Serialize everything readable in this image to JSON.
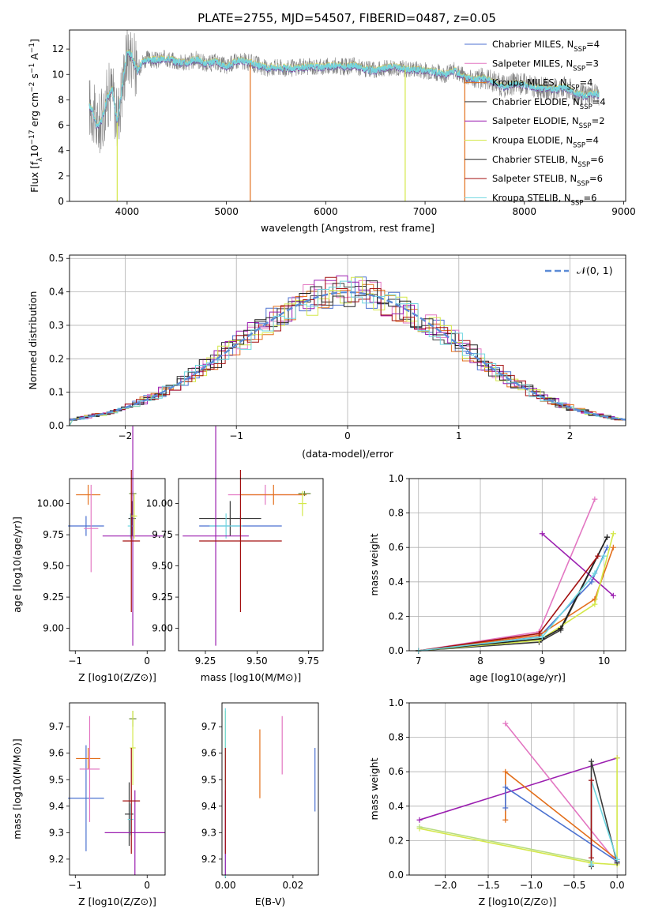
{
  "figure_title": "PLATE=2755, MJD=54507, FIBERID=0487, z=0.05",
  "series_names": [
    "Chabrier MILES, N$_{SSP}$=4",
    "Salpeter MILES, N$_{SSP}$=3",
    "Kroupa MILES, N$_{SSP}$=4",
    "Chabrier ELODIE, N$_{SSP}$=4",
    "Salpeter ELODIE, N$_{SSP}$=2",
    "Kroupa ELODIE, N$_{SSP}$=4",
    "Chabrier STELIB, N$_{SSP}$=6",
    "Salpeter STELIB, N$_{SSP}$=6",
    "Kroupa STELIB, N$_{SSP}$=6"
  ],
  "chart_data": [
    {
      "type": "line",
      "title": "PLATE=2755, MJD=54507, FIBERID=0487, z=0.05",
      "xlabel": "wavelength [Angstrom, rest frame]",
      "ylabel": "Flux [f_λ 10^-17 erg cm^-2 s^-1 A^-1]",
      "xlim": [
        3420,
        9020
      ],
      "ylim": [
        0,
        13.5
      ],
      "xticks": [
        4000,
        5000,
        6000,
        7000,
        8000,
        9000
      ],
      "yticks": [
        0,
        2,
        4,
        6,
        8,
        10,
        12
      ],
      "legend": {
        "position": "upper-right",
        "entries": [
          {
            "prefix": "Chabrier MILES, N",
            "sub": "SSP",
            "suffix": "=4",
            "color": "#4c72d0"
          },
          {
            "prefix": "Salpeter MILES, N",
            "sub": "SSP",
            "suffix": "=3",
            "color": "#e377c2"
          },
          {
            "prefix": "Kroupa MILES, N",
            "sub": "SSP",
            "suffix": "=4",
            "color": "#e3701d"
          },
          {
            "prefix": "Chabrier ELODIE, N",
            "sub": "SSP",
            "suffix": "=4",
            "color": "#3a3a3a"
          },
          {
            "prefix": "Salpeter ELODIE, N",
            "sub": "SSP",
            "suffix": "=2",
            "color": "#9b1fb0"
          },
          {
            "prefix": "Kroupa ELODIE, N",
            "sub": "SSP",
            "suffix": "=4",
            "color": "#d4e84a"
          },
          {
            "prefix": "Chabrier STELIB, N",
            "sub": "SSP",
            "suffix": "=6",
            "color": "#222222"
          },
          {
            "prefix": "Salpeter STELIB, N",
            "sub": "SSP",
            "suffix": "=6",
            "color": "#a31010"
          },
          {
            "prefix": "Kroupa STELIB, N",
            "sub": "SSP",
            "suffix": "=6",
            "color": "#6fd6e0"
          }
        ]
      },
      "data_color": "#808080",
      "model_color": "#74d4dd",
      "spectrum_x": [
        3620,
        3650,
        3700,
        3750,
        3800,
        3850,
        3900,
        3950,
        4000,
        4050,
        4100,
        4150,
        4200,
        4300,
        4400,
        4500,
        4600,
        4700,
        4800,
        4900,
        5000,
        5100,
        5200,
        5300,
        5400,
        5500,
        5600,
        5700,
        5800,
        5900,
        6000,
        6100,
        6200,
        6300,
        6400,
        6500,
        6600,
        6700,
        6800,
        6900,
        7000,
        7100,
        7200,
        7300,
        7400,
        7500,
        7600,
        7700,
        7800,
        7900,
        8000,
        8100,
        8200,
        8300,
        8400,
        8500,
        8600,
        8700,
        8750
      ],
      "spectrum_y": [
        7.5,
        7.2,
        5.8,
        6.5,
        8.2,
        8.8,
        6.2,
        9.0,
        11.8,
        11.5,
        10.2,
        11.0,
        11.2,
        11.1,
        11.3,
        11.0,
        10.9,
        11.2,
        10.8,
        11.0,
        10.6,
        11.1,
        11.0,
        10.8,
        10.5,
        10.6,
        10.5,
        10.5,
        10.6,
        10.6,
        10.6,
        10.7,
        10.6,
        10.7,
        10.4,
        10.3,
        10.5,
        10.6,
        10.4,
        10.4,
        10.3,
        10.2,
        10.0,
        10.3,
        9.8,
        9.6,
        9.7,
        9.4,
        9.0,
        9.3,
        9.2,
        9.0,
        8.9,
        8.8,
        9.0,
        8.6,
        8.3,
        8.5,
        8.4
      ],
      "dips_x": [
        3900,
        5240,
        6800,
        7400
      ],
      "dip_colors": [
        "#d4e84a",
        "#e3701d",
        "#d4e84a",
        "#e3701d"
      ]
    },
    {
      "type": "histogram",
      "xlabel": "(data-model)/error",
      "ylabel": "Normed distribution",
      "xlim": [
        -2.5,
        2.5
      ],
      "ylim": [
        0,
        0.51
      ],
      "xticks": [
        -2,
        -1,
        0,
        1,
        2
      ],
      "yticks": [
        0.0,
        0.1,
        0.2,
        0.3,
        0.4,
        0.5
      ],
      "grid": true,
      "legend": {
        "position": "upper-right",
        "label": "𝒩(0, 1)",
        "color": "#5b8bd6"
      },
      "bin_width": 0.1,
      "reference_curve": "normal(0,1)"
    },
    {
      "type": "scatter-errorbar",
      "xlabel": "Z [log10(Z/Z⊙)]",
      "ylabel": "age [log10(age/yr)]",
      "xlim": [
        -1.08,
        0.25
      ],
      "ylim": [
        8.82,
        10.2
      ],
      "xticks": [
        -1,
        0
      ],
      "yticks": [
        9.0,
        9.25,
        9.5,
        9.75,
        10.0
      ],
      "points": [
        {
          "x": -0.85,
          "y": 9.82,
          "xerr": 0.25,
          "yerr": 0.08,
          "color": "#4c72d0"
        },
        {
          "x": -0.82,
          "y": 10.07,
          "xerr": 0.17,
          "yerr": 0.08,
          "color": "#e3701d"
        },
        {
          "x": -0.78,
          "y": 9.8,
          "xerr": 0.1,
          "yerr": 0.35,
          "color": "#e377c2"
        },
        {
          "x": -0.2,
          "y": 10.08,
          "xerr": 0.05,
          "yerr": 0.02,
          "color": "#6a8a3a"
        },
        {
          "x": -0.21,
          "y": 9.88,
          "xerr": 0.05,
          "yerr": 0.14,
          "color": "#3a3a3a"
        },
        {
          "x": -0.23,
          "y": 9.82,
          "xerr": 0.04,
          "yerr": 0.1,
          "color": "#6fd6e0"
        },
        {
          "x": -0.2,
          "y": 9.74,
          "xerr": 0.42,
          "yerr": 0.88,
          "color": "#9b1fb0"
        },
        {
          "x": -0.22,
          "y": 9.7,
          "xerr": 0.12,
          "yerr": 0.57,
          "color": "#a31010"
        },
        {
          "x": -0.18,
          "y": 9.9,
          "xerr": 0.04,
          "yerr": 0.18,
          "color": "#d4e84a"
        }
      ]
    },
    {
      "type": "scatter-errorbar",
      "xlabel": "mass [log10(M/M⊙)]",
      "ylabel": "",
      "xlim": [
        9.12,
        9.82
      ],
      "ylim": [
        8.82,
        10.2
      ],
      "xticks": [
        9.25,
        9.5,
        9.75
      ],
      "yticks": [
        9.0,
        9.25,
        9.5,
        9.75,
        10.0
      ],
      "points": [
        {
          "x": 9.42,
          "y": 9.82,
          "xerr": 0.2,
          "yerr": 0.08,
          "color": "#4c72d0"
        },
        {
          "x": 9.54,
          "y": 10.07,
          "xerr": 0.18,
          "yerr": 0.08,
          "color": "#e377c2"
        },
        {
          "x": 9.58,
          "y": 10.07,
          "xerr": 0.16,
          "yerr": 0.08,
          "color": "#e3701d"
        },
        {
          "x": 9.37,
          "y": 9.88,
          "xerr": 0.15,
          "yerr": 0.14,
          "color": "#3a3a3a"
        },
        {
          "x": 9.35,
          "y": 9.82,
          "xerr": 0.08,
          "yerr": 0.1,
          "color": "#6fd6e0"
        },
        {
          "x": 9.3,
          "y": 9.74,
          "xerr": 0.16,
          "yerr": 0.88,
          "color": "#9b1fb0"
        },
        {
          "x": 9.42,
          "y": 9.7,
          "xerr": 0.2,
          "yerr": 0.57,
          "color": "#a31010"
        },
        {
          "x": 9.73,
          "y": 10.08,
          "xerr": 0.03,
          "yerr": 0.02,
          "color": "#6a8a3a"
        },
        {
          "x": 9.72,
          "y": 10.0,
          "xerr": 0.02,
          "yerr": 0.1,
          "color": "#d4e84a"
        }
      ]
    },
    {
      "type": "line",
      "xlabel": "age [log10(age/yr)]",
      "ylabel": "mass weight",
      "xlim": [
        6.85,
        10.35
      ],
      "ylim": [
        0,
        1.0
      ],
      "xticks": [
        7,
        8,
        9,
        10
      ],
      "yticks": [
        0.0,
        0.2,
        0.4,
        0.6,
        0.8,
        1.0
      ],
      "grid": true,
      "series": [
        {
          "color": "#4c72d0",
          "x": [
            7.0,
            8.95,
            9.8,
            10.05
          ],
          "y": [
            0.0,
            0.08,
            0.4,
            0.6
          ]
        },
        {
          "color": "#e377c2",
          "x": [
            7.0,
            8.95,
            9.85
          ],
          "y": [
            0.0,
            0.11,
            0.88
          ]
        },
        {
          "color": "#e3701d",
          "x": [
            7.0,
            8.95,
            9.85,
            10.15
          ],
          "y": [
            0.0,
            0.09,
            0.3,
            0.6
          ]
        },
        {
          "color": "#3a3a3a",
          "x": [
            7.0,
            8.95,
            9.3,
            10.05
          ],
          "y": [
            0.0,
            0.05,
            0.12,
            0.66
          ]
        },
        {
          "color": "#9b1fb0",
          "x": [
            9.0,
            10.15
          ],
          "y": [
            0.68,
            0.32
          ]
        },
        {
          "color": "#d4e84a",
          "x": [
            7.0,
            8.95,
            9.85,
            10.15
          ],
          "y": [
            0.0,
            0.06,
            0.27,
            0.68
          ]
        },
        {
          "color": "#222222",
          "x": [
            7.0,
            9.0,
            9.3,
            10.05
          ],
          "y": [
            0.0,
            0.07,
            0.13,
            0.66
          ]
        },
        {
          "color": "#a31010",
          "x": [
            7.0,
            8.95,
            9.9
          ],
          "y": [
            0.0,
            0.1,
            0.55
          ]
        },
        {
          "color": "#6fd6e0",
          "x": [
            7.0,
            9.0,
            9.85,
            10.0
          ],
          "y": [
            0.0,
            0.08,
            0.45,
            0.55
          ]
        }
      ]
    },
    {
      "type": "scatter-errorbar",
      "xlabel": "Z [log10(Z/Z⊙)]",
      "ylabel": "mass [log10(M/M⊙)]",
      "xlim": [
        -1.08,
        0.25
      ],
      "ylim": [
        9.14,
        9.79
      ],
      "xticks": [
        -1,
        0
      ],
      "yticks": [
        9.2,
        9.3,
        9.4,
        9.5,
        9.6,
        9.7
      ],
      "points": [
        {
          "x": -0.85,
          "y": 9.43,
          "xerr": 0.25,
          "yerr": 0.2,
          "color": "#4c72d0"
        },
        {
          "x": -0.82,
          "y": 9.58,
          "xerr": 0.17,
          "yerr": 0.04,
          "color": "#e3701d"
        },
        {
          "x": -0.8,
          "y": 9.54,
          "xerr": 0.14,
          "yerr": 0.2,
          "color": "#e377c2"
        },
        {
          "x": -0.2,
          "y": 9.73,
          "xerr": 0.05,
          "yerr": 0.03,
          "color": "#6a8a3a"
        },
        {
          "x": -0.2,
          "y": 9.62,
          "xerr": 0.04,
          "yerr": 0.14,
          "color": "#d4e84a"
        },
        {
          "x": -0.25,
          "y": 9.37,
          "xerr": 0.06,
          "yerr": 0.12,
          "color": "#3a3a3a"
        },
        {
          "x": -0.23,
          "y": 9.35,
          "xerr": 0.04,
          "yerr": 0.06,
          "color": "#6fd6e0"
        },
        {
          "x": -0.17,
          "y": 9.3,
          "xerr": 0.42,
          "yerr": 0.16,
          "color": "#9b1fb0"
        },
        {
          "x": -0.22,
          "y": 9.42,
          "xerr": 0.12,
          "yerr": 0.2,
          "color": "#a31010"
        }
      ]
    },
    {
      "type": "scatter-errorbar",
      "xlabel": "E(B-V)",
      "ylabel": "",
      "xlim": [
        -0.001,
        0.0275
      ],
      "ylim": [
        9.14,
        9.79
      ],
      "xticks": [
        0.0,
        0.02
      ],
      "yticks": [
        9.2,
        9.3,
        9.4,
        9.5,
        9.6,
        9.7
      ],
      "points": [
        {
          "x": 0.0265,
          "y": 9.5,
          "xerr": 0,
          "yerr": 0.12,
          "color": "#4c72d0"
        },
        {
          "x": 0.0168,
          "y": 9.63,
          "xerr": 0,
          "yerr": 0.11,
          "color": "#e377c2"
        },
        {
          "x": 0.0102,
          "y": 9.56,
          "xerr": 0,
          "yerr": 0.13,
          "color": "#e3701d"
        },
        {
          "x": 0.0,
          "y": 9.62,
          "xerr": 0,
          "yerr": 0.14,
          "color": "#d4e84a"
        },
        {
          "x": 0.0,
          "y": 9.45,
          "xerr": 0,
          "yerr": 0.32,
          "color": "#6fd6e0"
        },
        {
          "x": 0.0,
          "y": 9.3,
          "xerr": 0,
          "yerr": 0.16,
          "color": "#9b1fb0"
        },
        {
          "x": 0.0,
          "y": 9.42,
          "xerr": 0,
          "yerr": 0.2,
          "color": "#a31010"
        }
      ]
    },
    {
      "type": "line",
      "xlabel": "Z [log10(Z/Z⊙)]",
      "ylabel": "mass weight",
      "xlim": [
        -2.42,
        0.1
      ],
      "ylim": [
        0,
        1.0
      ],
      "xticks": [
        -2.0,
        -1.5,
        -1.0,
        -0.5,
        0.0
      ],
      "yticks": [
        0.0,
        0.2,
        0.4,
        0.6,
        0.8,
        1.0
      ],
      "grid": true,
      "series": [
        {
          "color": "#9b1fb0",
          "x": [
            -2.3,
            0.0
          ],
          "y": [
            0.32,
            0.68
          ]
        },
        {
          "color": "#e377c2",
          "x": [
            -1.3,
            0.0
          ],
          "y": [
            0.88,
            0.07
          ]
        },
        {
          "color": "#e3701d",
          "x": [
            -1.3,
            -1.3,
            0.0,
            0.0
          ],
          "y": [
            0.32,
            0.6,
            0.09,
            0.08
          ]
        },
        {
          "color": "#4c72d0",
          "x": [
            -1.3,
            -1.3,
            0.0
          ],
          "y": [
            0.39,
            0.51,
            0.08
          ]
        },
        {
          "color": "#d4e84a",
          "x": [
            -2.3,
            -0.3,
            0.0,
            0.0
          ],
          "y": [
            0.27,
            0.07,
            0.06,
            0.68
          ]
        },
        {
          "color": "#b8dc80",
          "x": [
            -2.3,
            -0.3
          ],
          "y": [
            0.28,
            0.08
          ]
        },
        {
          "color": "#3a3a3a",
          "x": [
            -0.3,
            -0.3,
            0.0
          ],
          "y": [
            0.05,
            0.66,
            0.07
          ]
        },
        {
          "color": "#6fd6e0",
          "x": [
            -0.3,
            -0.3,
            0.0
          ],
          "y": [
            0.06,
            0.55,
            0.09
          ]
        },
        {
          "color": "#a31010",
          "x": [
            -0.3,
            -0.3
          ],
          "y": [
            0.55,
            0.1
          ]
        }
      ]
    }
  ]
}
